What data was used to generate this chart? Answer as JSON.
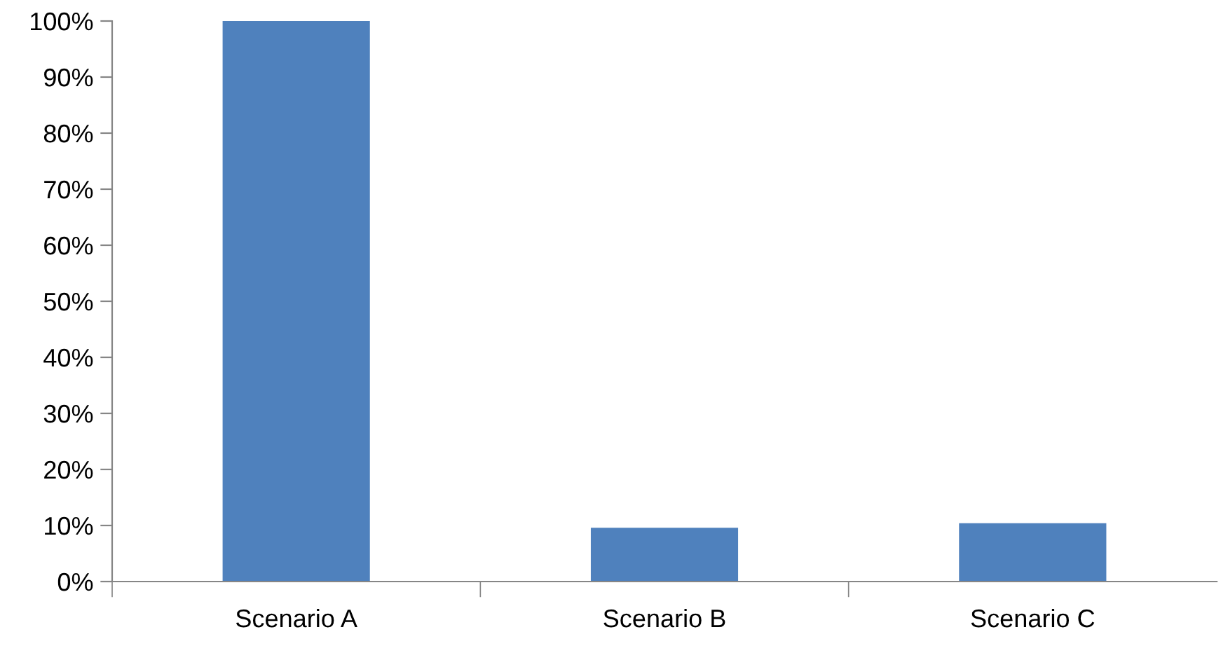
{
  "chart_data": {
    "type": "bar",
    "categories": [
      "Scenario A",
      "Scenario B",
      "Scenario C"
    ],
    "values": [
      100,
      9.6,
      10.4
    ],
    "color": "#4f81bd",
    "ylim": [
      0,
      100
    ],
    "yticks": [
      {
        "value": 0,
        "label": "0%"
      },
      {
        "value": 10,
        "label": "10%"
      },
      {
        "value": 20,
        "label": "20%"
      },
      {
        "value": 30,
        "label": "30%"
      },
      {
        "value": 40,
        "label": "40%"
      },
      {
        "value": 50,
        "label": "50%"
      },
      {
        "value": 60,
        "label": "60%"
      },
      {
        "value": 70,
        "label": "70%"
      },
      {
        "value": 80,
        "label": "80%"
      },
      {
        "value": 90,
        "label": "90%"
      },
      {
        "value": 100,
        "label": "100%"
      }
    ],
    "grid": false,
    "legend": false
  }
}
